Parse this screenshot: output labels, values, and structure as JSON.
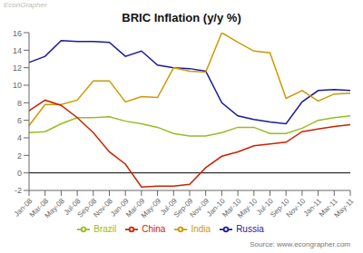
{
  "chart_data": {
    "type": "line",
    "title": "BRIC Inflation (y/y %)",
    "annotations": [
      "EconGrapher",
      "Source: www.econgrapher.com"
    ],
    "categories": [
      "Jan-08",
      "Mar-08",
      "May-08",
      "Jul-08",
      "Sep-08",
      "Nov-08",
      "Jan-09",
      "Mar-09",
      "May-09",
      "Jul-09",
      "Sep-09",
      "Nov-09",
      "Jan-10",
      "Mar-10",
      "May-10",
      "Jul-10",
      "Sep-10",
      "Nov-10",
      "Jan-11",
      "Mar-11",
      "May-11"
    ],
    "series": [
      {
        "name": "Brazil",
        "color": "#99bb22",
        "values": [
          4.6,
          4.7,
          5.6,
          6.3,
          6.3,
          6.4,
          5.9,
          5.6,
          5.2,
          4.5,
          4.2,
          4.2,
          4.6,
          5.2,
          5.2,
          4.5,
          4.5,
          5.1,
          6.0,
          6.3,
          6.5
        ]
      },
      {
        "name": "Russia",
        "color": "#1a1a99",
        "values": [
          12.6,
          13.3,
          15.1,
          15.0,
          15.0,
          14.9,
          13.3,
          13.9,
          12.3,
          12.0,
          11.9,
          11.6,
          8.0,
          6.5,
          6.1,
          5.8,
          5.6,
          8.1,
          9.4,
          9.5,
          9.4
        ]
      },
      {
        "name": "India",
        "color": "#cc9900",
        "values": [
          5.4,
          7.8,
          7.8,
          8.3,
          10.5,
          10.5,
          8.1,
          8.7,
          8.6,
          12.0,
          11.6,
          11.5,
          16.0,
          14.9,
          13.9,
          13.7,
          8.5,
          9.4,
          8.2,
          9.0,
          9.1
        ]
      },
      {
        "name": "China",
        "color": "#cc2200",
        "values": [
          7.1,
          8.3,
          7.7,
          6.3,
          4.6,
          2.4,
          1.0,
          -1.6,
          -1.5,
          -1.5,
          -1.3,
          0.6,
          1.9,
          2.4,
          3.1,
          3.3,
          3.5,
          4.7,
          5.0,
          5.3,
          5.5
        ]
      }
    ],
    "ylim": [
      -2,
      16
    ],
    "yticks": [
      -2,
      0,
      2,
      4,
      6,
      8,
      10,
      12,
      14,
      16
    ],
    "grid": false,
    "legend": "bottom"
  }
}
